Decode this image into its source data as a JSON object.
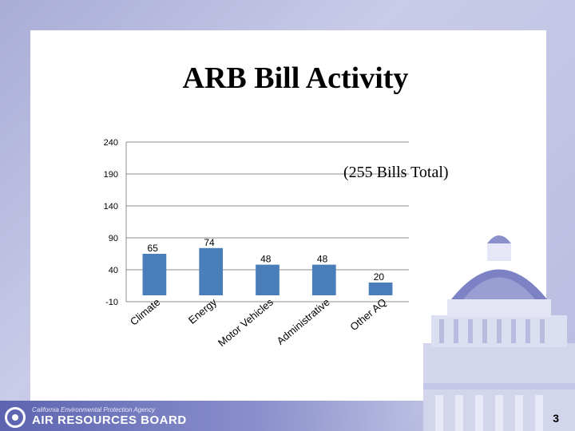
{
  "slide": {
    "title": "ARB Bill Activity",
    "subtitle": "(255 Bills Total)",
    "page_number": "3"
  },
  "footer": {
    "agency": "California Environmental Protection Agency",
    "board": "AIR RESOURCES BOARD"
  },
  "colors": {
    "bar": "#4a7ebb",
    "background": "#b9bce0",
    "footer": "#5c64b0"
  },
  "chart_data": {
    "type": "bar",
    "categories": [
      "Climate",
      "Energy",
      "Motor Vehicles",
      "Administrative",
      "Other AQ"
    ],
    "values": [
      65,
      74,
      48,
      48,
      20
    ],
    "data_labels": [
      "65",
      "74",
      "48",
      "48",
      "20"
    ],
    "ylim": [
      -10,
      240
    ],
    "yticks": [
      -10,
      40,
      90,
      140,
      190,
      240
    ],
    "grid": true
  }
}
